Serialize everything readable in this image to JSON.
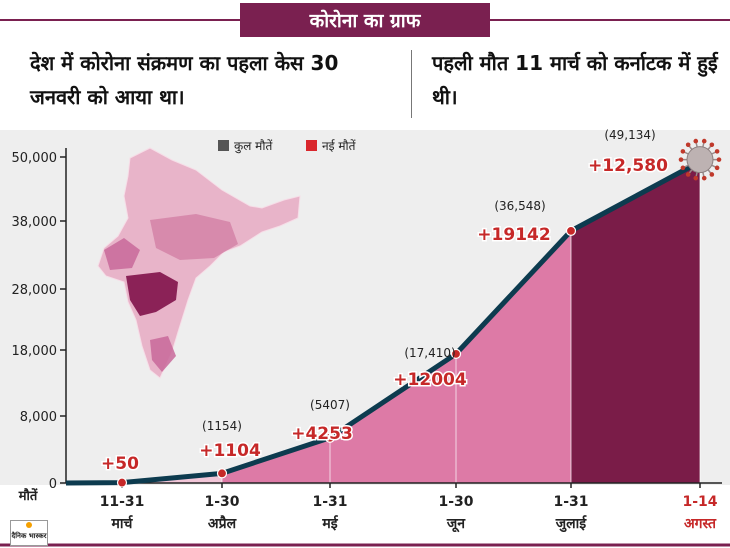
{
  "header": {
    "title": "कोरोना का ग्राफ",
    "fact_left": "देश में कोरोना संक्रमण का पहला केस 30 जनवरी को आया था।",
    "fact_right": "पहली मौत 11 मार्च को कर्नाटक में हुई थी।"
  },
  "brand": "दैनिक भास्कर",
  "colors": {
    "title_bg": "#7a2050",
    "line": "#0d3b4f",
    "total_legend": "#555555",
    "new_legend": "#d9262c",
    "annotation": "#c62828",
    "fill_light": "#f2c6d8",
    "fill_mid": "#dd7aa6",
    "fill_dark": "#7a1c48"
  },
  "chart_data": {
    "type": "area",
    "title": "कोरोना का ग्राफ",
    "xlabel": "मौतें",
    "ylabel": "",
    "ylim": [
      0,
      50000
    ],
    "yticks": [
      "0",
      "8,000",
      "18,000",
      "28,000",
      "38,000",
      "50,000"
    ],
    "ytick_values": [
      0,
      8000,
      18000,
      28000,
      38000,
      50000
    ],
    "legend": {
      "position": "top",
      "items": [
        {
          "name": "कुल मौतें",
          "color": "#555555"
        },
        {
          "name": "नई मौतें",
          "color": "#d9262c"
        }
      ]
    },
    "categories": [
      {
        "line1": "11-31",
        "line2": "मार्च",
        "highlight": false
      },
      {
        "line1": "1-30",
        "line2": "अप्रैल",
        "highlight": false
      },
      {
        "line1": "1-31",
        "line2": "मई",
        "highlight": false
      },
      {
        "line1": "1-30",
        "line2": "जून",
        "highlight": false
      },
      {
        "line1": "1-31",
        "line2": "जुलाई",
        "highlight": false
      },
      {
        "line1": "1-14",
        "line2": "अगस्त",
        "highlight": true
      }
    ],
    "series": [
      {
        "name": "कुल मौतें",
        "values": [
          50,
          1154,
          5407,
          17410,
          36548,
          49134
        ],
        "labels": [
          "",
          "(1154)",
          "(5407)",
          "(17,410)",
          "(36,548)",
          "(49,134)"
        ]
      },
      {
        "name": "नई मौतें",
        "values": [
          50,
          1104,
          4253,
          12004,
          19142,
          12580
        ],
        "labels": [
          "+50",
          "+1104",
          "+4253",
          "+12004",
          "+19142",
          "+12,580"
        ]
      }
    ]
  }
}
